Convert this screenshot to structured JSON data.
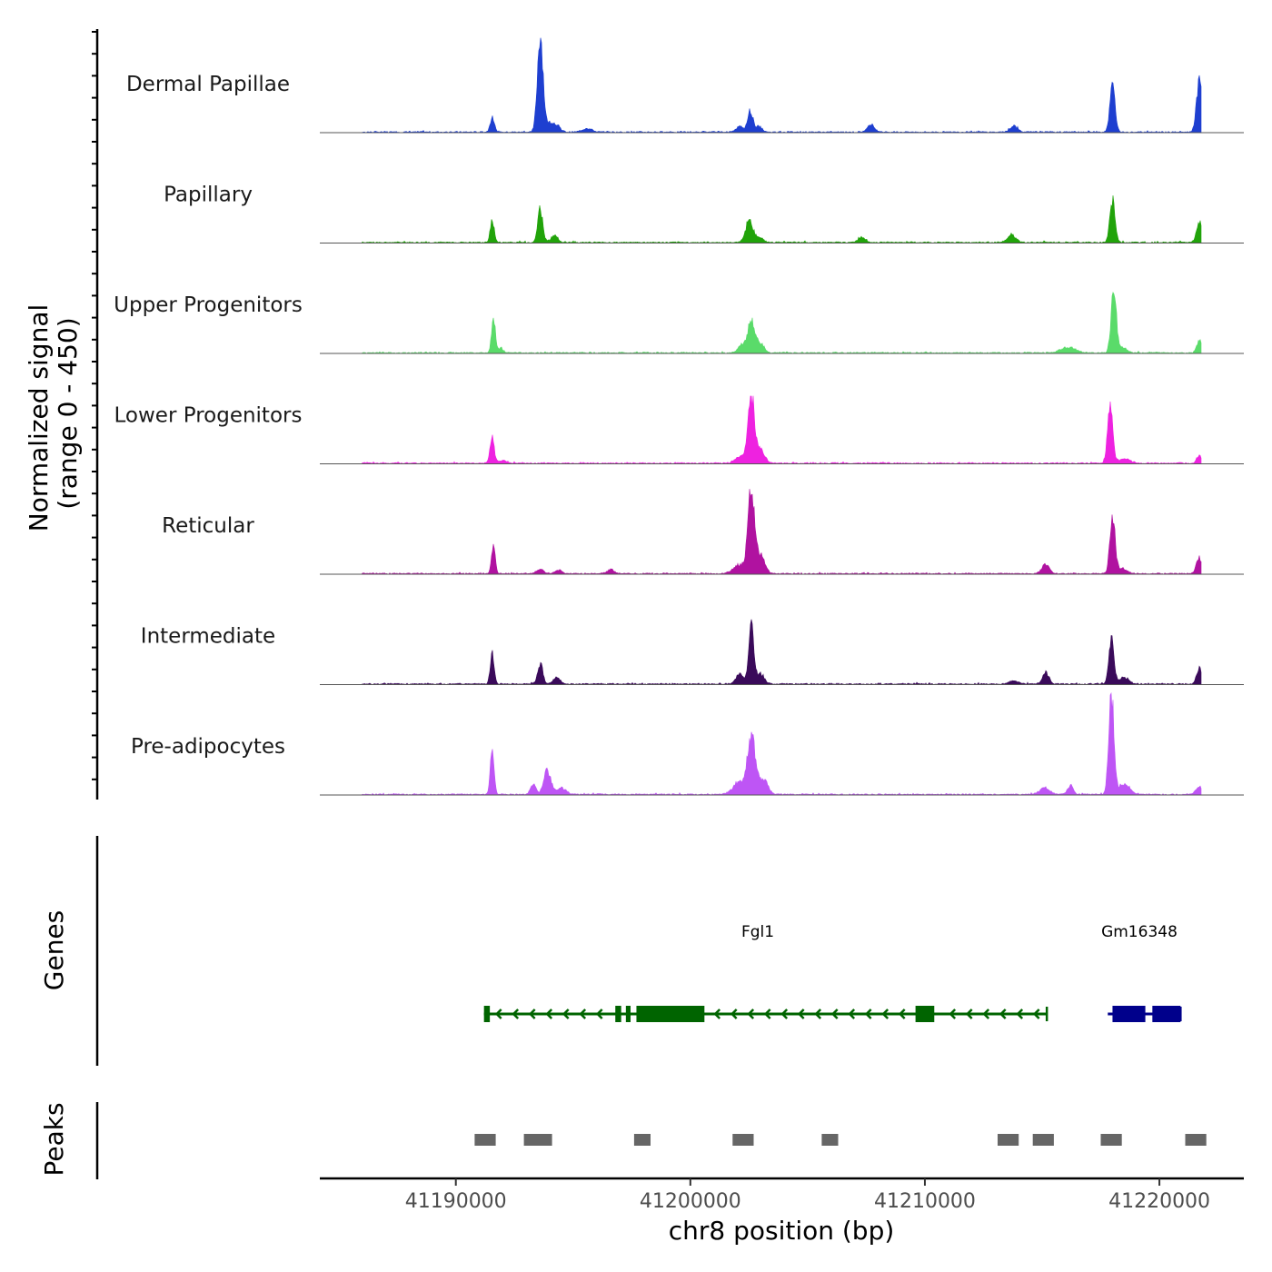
{
  "chart_data": {
    "type": "area",
    "title": "",
    "ylabel_line1": "Normalized signal",
    "ylabel_line2": "(range 0 - 450)",
    "ylim": [
      0,
      450
    ],
    "xlabel": "chr8 position (bp)",
    "xlim": [
      41184200,
      41223600
    ],
    "x_ticks": [
      41190000,
      41200000,
      41210000,
      41220000
    ],
    "x_tick_labels": [
      "41190000",
      "41200000",
      "41210000",
      "41220000"
    ],
    "peak_positions": [
      41191000,
      41193300,
      41202500,
      41206500,
      41213700,
      41215100,
      41218100,
      41221800
    ],
    "series": [
      {
        "name": "Dermal Papillae",
        "color": "#1E3FD0",
        "peaks": [
          [
            41191550,
            65,
            90
          ],
          [
            41193600,
            450,
            120
          ],
          [
            41194000,
            40,
            150
          ],
          [
            41194300,
            30,
            150
          ],
          [
            41195600,
            18,
            200
          ],
          [
            41202100,
            25,
            150
          ],
          [
            41202550,
            95,
            110
          ],
          [
            41202900,
            25,
            150
          ],
          [
            41207700,
            35,
            150
          ],
          [
            41213800,
            28,
            150
          ],
          [
            41218000,
            210,
            110
          ],
          [
            41221700,
            220,
            120
          ],
          [
            41222000,
            60,
            180
          ]
        ]
      },
      {
        "name": "Papillary",
        "color": "#21A30A",
        "peaks": [
          [
            41191550,
            100,
            85
          ],
          [
            41193600,
            150,
            110
          ],
          [
            41194200,
            30,
            150
          ],
          [
            41202500,
            95,
            150
          ],
          [
            41202900,
            25,
            180
          ],
          [
            41207300,
            25,
            150
          ],
          [
            41213700,
            35,
            170
          ],
          [
            41218000,
            190,
            110
          ],
          [
            41221700,
            85,
            120
          ],
          [
            41222000,
            45,
            160
          ]
        ]
      },
      {
        "name": "Upper Progenitors",
        "color": "#5ADB6A",
        "peaks": [
          [
            41191600,
            160,
            80
          ],
          [
            41191900,
            20,
            120
          ],
          [
            41202200,
            35,
            170
          ],
          [
            41202600,
            140,
            150
          ],
          [
            41203000,
            40,
            160
          ],
          [
            41216100,
            25,
            300
          ],
          [
            41218050,
            280,
            110
          ],
          [
            41218400,
            25,
            200
          ],
          [
            41221700,
            55,
            110
          ]
        ]
      },
      {
        "name": "Lower Progenitors",
        "color": "#EE22E0",
        "peaks": [
          [
            41191550,
            130,
            85
          ],
          [
            41192000,
            15,
            150
          ],
          [
            41202100,
            30,
            200
          ],
          [
            41202600,
            310,
            140
          ],
          [
            41203000,
            60,
            170
          ],
          [
            41217900,
            270,
            110
          ],
          [
            41218500,
            20,
            250
          ],
          [
            41221700,
            35,
            110
          ]
        ]
      },
      {
        "name": "Reticular",
        "color": "#B012A0",
        "peaks": [
          [
            41191600,
            125,
            80
          ],
          [
            41193600,
            20,
            150
          ],
          [
            41194400,
            15,
            150
          ],
          [
            41196600,
            20,
            130
          ],
          [
            41202100,
            40,
            260
          ],
          [
            41202600,
            380,
            140
          ],
          [
            41203000,
            80,
            180
          ],
          [
            41215150,
            45,
            150
          ],
          [
            41218000,
            260,
            110
          ],
          [
            41218400,
            25,
            200
          ],
          [
            41221700,
            75,
            120
          ]
        ]
      },
      {
        "name": "Intermediate",
        "color": "#3A0A5A",
        "peaks": [
          [
            41191550,
            145,
            80
          ],
          [
            41193600,
            90,
            110
          ],
          [
            41194300,
            30,
            150
          ],
          [
            41202100,
            45,
            150
          ],
          [
            41202600,
            270,
            110
          ],
          [
            41203000,
            45,
            160
          ],
          [
            41213800,
            15,
            200
          ],
          [
            41215150,
            55,
            130
          ],
          [
            41217950,
            205,
            110
          ],
          [
            41218500,
            30,
            200
          ],
          [
            41221700,
            70,
            110
          ],
          [
            41222100,
            20,
            150
          ]
        ]
      },
      {
        "name": "Pre-adipocytes",
        "color": "#BE55F5",
        "peaks": [
          [
            41191550,
            200,
            80
          ],
          [
            41193300,
            45,
            120
          ],
          [
            41193900,
            110,
            150
          ],
          [
            41194500,
            30,
            200
          ],
          [
            41202100,
            60,
            260
          ],
          [
            41202600,
            270,
            160
          ],
          [
            41203100,
            70,
            200
          ],
          [
            41215100,
            30,
            200
          ],
          [
            41216200,
            40,
            120
          ],
          [
            41217950,
            460,
            110
          ],
          [
            41218500,
            50,
            230
          ],
          [
            41221700,
            35,
            150
          ]
        ]
      }
    ],
    "genes_label": "Genes",
    "genes": [
      {
        "name": "Fgl1",
        "color": "#006400",
        "strand": "-",
        "start": 41191200,
        "end": 41215200,
        "exons": [
          [
            41191200,
            41191450
          ],
          [
            41196800,
            41197050
          ],
          [
            41197250,
            41197450
          ],
          [
            41197700,
            41200600
          ],
          [
            41209600,
            41210400
          ]
        ]
      },
      {
        "name": "Gm16348",
        "color": "#00008B",
        "strand": "+",
        "start": 41217800,
        "end": 41220900,
        "exons": [
          [
            41218000,
            41219400
          ],
          [
            41219700,
            41220900
          ]
        ]
      }
    ],
    "peaks_label": "Peaks",
    "peak_regions": [
      [
        41190800,
        41191700
      ],
      [
        41192900,
        41194100
      ],
      [
        41197600,
        41198300
      ],
      [
        41201800,
        41202700
      ],
      [
        41205600,
        41206300
      ],
      [
        41213100,
        41214000
      ],
      [
        41214600,
        41215500
      ],
      [
        41217500,
        41218400
      ],
      [
        41221100,
        41222000
      ]
    ]
  }
}
